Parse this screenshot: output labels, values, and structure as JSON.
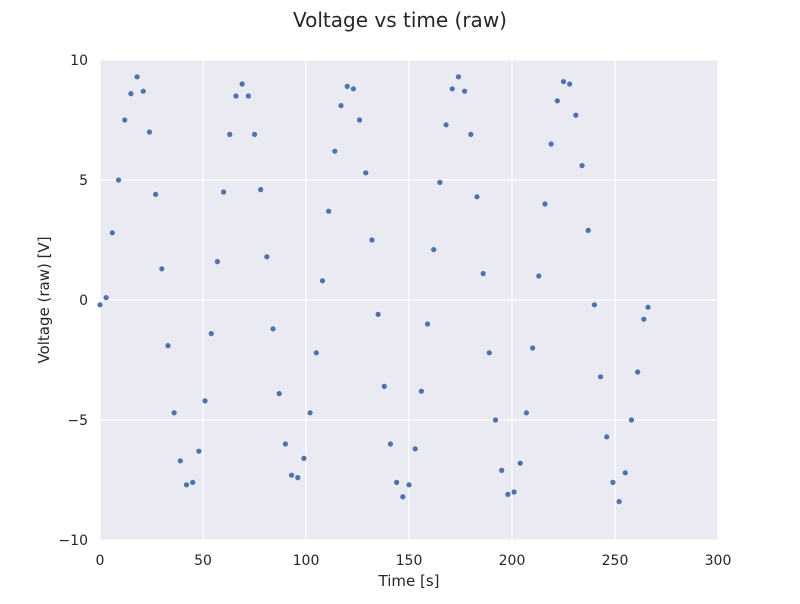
{
  "chart_data": {
    "type": "scatter",
    "title": "Voltage vs time (raw)",
    "x_label": "Time [s]",
    "y_label": "Voltage (raw) [V]",
    "color": "#4c72b0",
    "grid": true,
    "xlim": [
      0,
      300
    ],
    "xticks": [
      0,
      50,
      100,
      150,
      200,
      250,
      300
    ],
    "ylim": [
      -10,
      10
    ],
    "yticks": [
      {
        "value": -10,
        "label": "−10"
      },
      {
        "value": -5,
        "label": "−5"
      },
      0,
      5,
      10
    ],
    "x": [
      0,
      3,
      6,
      9,
      12,
      15,
      18,
      21,
      24,
      27,
      30,
      33,
      36,
      39,
      42,
      45,
      48,
      51,
      54,
      57,
      60,
      63,
      66,
      69,
      72,
      75,
      78,
      81,
      84,
      87,
      90,
      93,
      96,
      99,
      102,
      105,
      108,
      111,
      114,
      117,
      120,
      123,
      126,
      129,
      132,
      135,
      138,
      141,
      144,
      147,
      150,
      153,
      156,
      159,
      162,
      165,
      168,
      171,
      174,
      177,
      180,
      183,
      186,
      189,
      192,
      195,
      198,
      201,
      204,
      207,
      210,
      213,
      216,
      219,
      222,
      225,
      228,
      231,
      234,
      237,
      240,
      243,
      246,
      249,
      252,
      255,
      258,
      261,
      264,
      266
    ],
    "values": [
      -0.2,
      0.1,
      2.8,
      5.0,
      7.5,
      8.6,
      9.3,
      8.7,
      7.0,
      4.4,
      1.3,
      -1.9,
      -4.7,
      -6.7,
      -7.7,
      -7.6,
      -6.3,
      -4.2,
      -1.4,
      1.6,
      4.5,
      6.9,
      8.5,
      9.0,
      8.5,
      6.9,
      4.6,
      1.8,
      -1.2,
      -3.9,
      -6.0,
      -7.3,
      -7.4,
      -6.6,
      -4.7,
      -2.2,
      0.8,
      3.7,
      6.2,
      8.1,
      8.9,
      8.8,
      7.5,
      5.3,
      2.5,
      -0.6,
      -3.6,
      -6.0,
      -7.6,
      -8.2,
      -7.7,
      -6.2,
      -3.8,
      -1.0,
      2.1,
      4.9,
      7.3,
      8.8,
      9.3,
      8.7,
      6.9,
      4.3,
      1.1,
      -2.2,
      -5.0,
      -7.1,
      -8.1,
      -8.0,
      -6.8,
      -4.7,
      -2.0,
      1.0,
      4.0,
      6.5,
      8.3,
      9.1,
      9.0,
      7.7,
      5.6,
      2.9,
      -0.2,
      -3.2,
      -5.7,
      -7.6,
      -8.4,
      -7.2,
      -5.0,
      -3.0,
      -0.8,
      -0.3
    ]
  }
}
